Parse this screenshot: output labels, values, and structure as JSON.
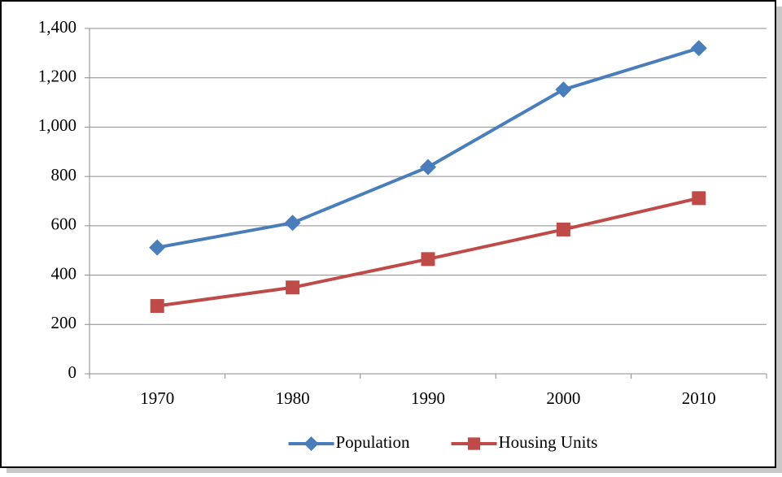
{
  "chart_data": {
    "type": "line",
    "categories": [
      "1970",
      "1980",
      "1990",
      "2000",
      "2010"
    ],
    "series": [
      {
        "name": "Population",
        "color": "#4a7ebb",
        "marker": "diamond",
        "values": [
          512,
          612,
          838,
          1152,
          1320
        ]
      },
      {
        "name": "Housing Units",
        "color": "#be4b48",
        "marker": "square",
        "values": [
          275,
          350,
          465,
          585,
          712
        ]
      }
    ],
    "ylim": [
      0,
      1400
    ],
    "yticks": [
      0,
      200,
      400,
      600,
      800,
      {
        "value": 1000,
        "label": "1,000"
      },
      {
        "value": 1200,
        "label": "1,200"
      },
      {
        "value": 1400,
        "label": "1,400"
      }
    ],
    "grid": true,
    "legend": "bottom"
  }
}
